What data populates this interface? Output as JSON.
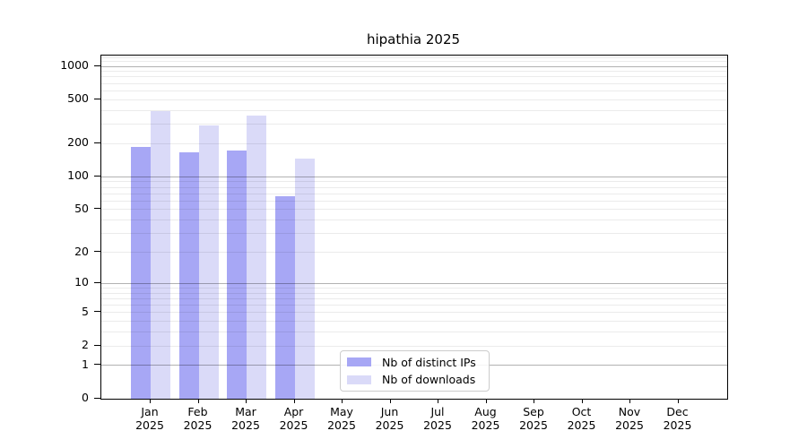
{
  "title": "hipathia 2025",
  "colors": {
    "distinct_ips": "#a7a7f5",
    "downloads": "#dadaf8",
    "grid_major": "#b0b0b0",
    "grid_minor": "#ebebeb",
    "axis": "#000000",
    "legend_border": "#cccccc",
    "background": "#ffffff"
  },
  "chart_data": {
    "type": "bar",
    "title": "hipathia 2025",
    "yscale": "log1p",
    "ylim": [
      0,
      1252
    ],
    "yticks": [
      0,
      1,
      2,
      5,
      10,
      20,
      50,
      100,
      200,
      500,
      1000
    ],
    "grid": {
      "major": [
        1,
        10,
        100,
        1000
      ],
      "minor": [
        2,
        3,
        4,
        5,
        6,
        7,
        8,
        9,
        20,
        30,
        40,
        50,
        60,
        70,
        80,
        90,
        200,
        300,
        400,
        500,
        600,
        700,
        800,
        900,
        1100,
        1200
      ]
    },
    "categories": [
      {
        "month": "Jan",
        "year": "2025"
      },
      {
        "month": "Feb",
        "year": "2025"
      },
      {
        "month": "Mar",
        "year": "2025"
      },
      {
        "month": "Apr",
        "year": "2025"
      },
      {
        "month": "May",
        "year": "2025"
      },
      {
        "month": "Jun",
        "year": "2025"
      },
      {
        "month": "Jul",
        "year": "2025"
      },
      {
        "month": "Aug",
        "year": "2025"
      },
      {
        "month": "Sep",
        "year": "2025"
      },
      {
        "month": "Oct",
        "year": "2025"
      },
      {
        "month": "Nov",
        "year": "2025"
      },
      {
        "month": "Dec",
        "year": "2025"
      }
    ],
    "series": [
      {
        "name": "Nb of distinct IPs",
        "color": "#a7a7f5",
        "values": [
          185,
          168,
          173,
          66,
          0,
          0,
          0,
          0,
          0,
          0,
          0,
          0
        ]
      },
      {
        "name": "Nb of downloads",
        "color": "#dadaf8",
        "values": [
          395,
          290,
          360,
          145,
          0,
          0,
          0,
          0,
          0,
          0,
          0,
          0
        ]
      }
    ],
    "legend_position": "lower center"
  },
  "legend": {
    "entries": [
      {
        "label": "Nb of distinct IPs",
        "color": "#a7a7f5"
      },
      {
        "label": "Nb of downloads",
        "color": "#dadaf8"
      }
    ]
  }
}
